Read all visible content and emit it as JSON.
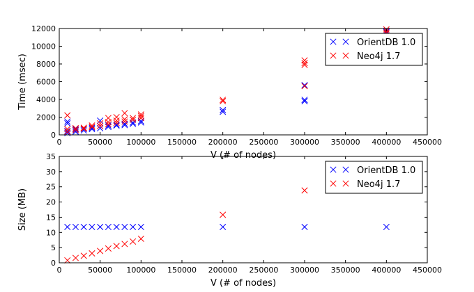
{
  "chart_data": [
    {
      "type": "scatter",
      "xlabel": "V (# of nodes)",
      "ylabel": "Time (msec)",
      "xlim": [
        0,
        450000
      ],
      "ylim": [
        0,
        12000
      ],
      "x_ticks": [
        0,
        50000,
        100000,
        150000,
        200000,
        250000,
        300000,
        350000,
        400000,
        450000
      ],
      "y_ticks": [
        0,
        2000,
        4000,
        6000,
        8000,
        10000,
        12000
      ],
      "grid": false,
      "legend_position": "top-right",
      "series": [
        {
          "name": "OrientDB 1.0",
          "color": "#0000ff",
          "marker": "x",
          "points": [
            [
              10000,
              200
            ],
            [
              10000,
              450
            ],
            [
              10000,
              1500
            ],
            [
              10000,
              1300
            ],
            [
              20000,
              350
            ],
            [
              20000,
              500
            ],
            [
              20000,
              650
            ],
            [
              30000,
              500
            ],
            [
              30000,
              650
            ],
            [
              40000,
              650
            ],
            [
              40000,
              800
            ],
            [
              50000,
              750
            ],
            [
              50000,
              1000
            ],
            [
              50000,
              1600
            ],
            [
              60000,
              900
            ],
            [
              60000,
              1050
            ],
            [
              70000,
              1050
            ],
            [
              70000,
              1150
            ],
            [
              80000,
              1100
            ],
            [
              80000,
              1250
            ],
            [
              90000,
              1250
            ],
            [
              90000,
              1400
            ],
            [
              100000,
              1400
            ],
            [
              100000,
              1550
            ],
            [
              200000,
              2600
            ],
            [
              200000,
              2800
            ],
            [
              300000,
              3800
            ],
            [
              300000,
              3950
            ],
            [
              300000,
              5600
            ],
            [
              400000,
              11600
            ],
            [
              400000,
              11750
            ]
          ]
        },
        {
          "name": "Neo4j 1.7",
          "color": "#ff0000",
          "marker": "x",
          "points": [
            [
              10000,
              350
            ],
            [
              10000,
              650
            ],
            [
              10000,
              2200
            ],
            [
              20000,
              550
            ],
            [
              20000,
              750
            ],
            [
              30000,
              700
            ],
            [
              30000,
              800
            ],
            [
              40000,
              900
            ],
            [
              40000,
              1050
            ],
            [
              50000,
              1000
            ],
            [
              50000,
              1300
            ],
            [
              60000,
              1200
            ],
            [
              60000,
              1450
            ],
            [
              60000,
              1900
            ],
            [
              70000,
              1350
            ],
            [
              70000,
              1600
            ],
            [
              70000,
              2000
            ],
            [
              80000,
              1500
            ],
            [
              80000,
              1750
            ],
            [
              80000,
              2450
            ],
            [
              90000,
              1700
            ],
            [
              90000,
              1900
            ],
            [
              100000,
              1900
            ],
            [
              100000,
              2100
            ],
            [
              100000,
              2300
            ],
            [
              200000,
              3800
            ],
            [
              200000,
              3950
            ],
            [
              300000,
              5500
            ],
            [
              300000,
              7900
            ],
            [
              300000,
              8100
            ],
            [
              300000,
              8400
            ],
            [
              400000,
              11500
            ],
            [
              400000,
              11700
            ],
            [
              400000,
              11900
            ]
          ]
        }
      ]
    },
    {
      "type": "scatter",
      "xlabel": "V (# of nodes)",
      "ylabel": "Size (MB)",
      "xlim": [
        0,
        450000
      ],
      "ylim": [
        0,
        35
      ],
      "x_ticks": [
        0,
        50000,
        100000,
        150000,
        200000,
        250000,
        300000,
        350000,
        400000,
        450000
      ],
      "y_ticks": [
        0,
        5,
        10,
        15,
        20,
        25,
        30,
        35
      ],
      "grid": false,
      "legend_position": "top-right",
      "series": [
        {
          "name": "OrientDB 1.0",
          "color": "#0000ff",
          "marker": "x",
          "points": [
            [
              10000,
              11.8
            ],
            [
              20000,
              11.8
            ],
            [
              30000,
              11.8
            ],
            [
              40000,
              11.8
            ],
            [
              50000,
              11.8
            ],
            [
              60000,
              11.8
            ],
            [
              70000,
              11.8
            ],
            [
              80000,
              11.8
            ],
            [
              90000,
              11.8
            ],
            [
              100000,
              11.8
            ],
            [
              200000,
              11.8
            ],
            [
              300000,
              11.8
            ],
            [
              400000,
              11.8
            ]
          ]
        },
        {
          "name": "Neo4j 1.7",
          "color": "#ff0000",
          "marker": "x",
          "points": [
            [
              10000,
              0.8
            ],
            [
              20000,
              1.6
            ],
            [
              30000,
              2.3
            ],
            [
              40000,
              3.1
            ],
            [
              50000,
              3.9
            ],
            [
              60000,
              4.7
            ],
            [
              70000,
              5.5
            ],
            [
              80000,
              6.2
            ],
            [
              90000,
              7.0
            ],
            [
              100000,
              7.9
            ],
            [
              200000,
              15.8
            ],
            [
              300000,
              23.8
            ]
          ]
        }
      ]
    }
  ]
}
